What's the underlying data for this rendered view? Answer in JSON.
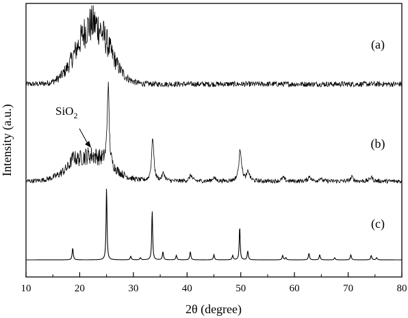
{
  "chart_data": {
    "type": "line",
    "title": "",
    "xlabel": "2θ (degree)",
    "ylabel": "Intensity (a.u.)",
    "xlim": [
      10,
      80
    ],
    "x_ticks": [
      10,
      20,
      30,
      40,
      50,
      60,
      70,
      80
    ],
    "y_ticks_shown": false,
    "grid": false,
    "legend": "none",
    "line_color": "#000000",
    "annotations": [
      {
        "text_main": "SiO",
        "text_sub": "2",
        "points_to_x": 22
      }
    ],
    "series": [
      {
        "label": "(a)",
        "baseline": 0,
        "noise": 0.045,
        "peaks": [
          {
            "x": 22.5,
            "height": 1.0,
            "width": 3.0,
            "shape": "gauss"
          }
        ]
      },
      {
        "label": "(b)",
        "baseline": 0,
        "noise": 0.035,
        "peaks": [
          {
            "x": 22,
            "height": 0.42,
            "width": 3.6,
            "shape": "gauss"
          },
          {
            "x": 18.8,
            "height": 0.12,
            "width": 0.5,
            "shape": "lorentz"
          },
          {
            "x": 25.3,
            "height": 1.32,
            "width": 0.22,
            "shape": "lorentz"
          },
          {
            "x": 33.6,
            "height": 0.72,
            "width": 0.25,
            "shape": "lorentz"
          },
          {
            "x": 35.6,
            "height": 0.13,
            "width": 0.3,
            "shape": "lorentz"
          },
          {
            "x": 40.7,
            "height": 0.1,
            "width": 0.3,
            "shape": "lorentz"
          },
          {
            "x": 45.0,
            "height": 0.06,
            "width": 0.3,
            "shape": "lorentz"
          },
          {
            "x": 49.9,
            "height": 0.52,
            "width": 0.3,
            "shape": "lorentz"
          },
          {
            "x": 51.4,
            "height": 0.15,
            "width": 0.3,
            "shape": "lorentz"
          },
          {
            "x": 57.9,
            "height": 0.06,
            "width": 0.3,
            "shape": "lorentz"
          },
          {
            "x": 62.8,
            "height": 0.08,
            "width": 0.3,
            "shape": "lorentz"
          },
          {
            "x": 64.8,
            "height": 0.05,
            "width": 0.3,
            "shape": "lorentz"
          },
          {
            "x": 70.7,
            "height": 0.07,
            "width": 0.3,
            "shape": "lorentz"
          },
          {
            "x": 74.3,
            "height": 0.07,
            "width": 0.3,
            "shape": "lorentz"
          }
        ]
      },
      {
        "label": "(c)",
        "baseline": 0,
        "noise": 0,
        "peaks": [
          {
            "x": 18.7,
            "height": 0.16,
            "width": 0.12,
            "shape": "lorentz"
          },
          {
            "x": 25.0,
            "height": 1.0,
            "width": 0.1,
            "shape": "lorentz"
          },
          {
            "x": 29.5,
            "height": 0.05,
            "width": 0.12,
            "shape": "lorentz"
          },
          {
            "x": 31.3,
            "height": 0.03,
            "width": 0.12,
            "shape": "lorentz"
          },
          {
            "x": 33.5,
            "height": 0.68,
            "width": 0.1,
            "shape": "lorentz"
          },
          {
            "x": 35.5,
            "height": 0.11,
            "width": 0.12,
            "shape": "lorentz"
          },
          {
            "x": 38.0,
            "height": 0.06,
            "width": 0.12,
            "shape": "lorentz"
          },
          {
            "x": 40.6,
            "height": 0.11,
            "width": 0.12,
            "shape": "lorentz"
          },
          {
            "x": 45.0,
            "height": 0.07,
            "width": 0.12,
            "shape": "lorentz"
          },
          {
            "x": 48.5,
            "height": 0.06,
            "width": 0.12,
            "shape": "lorentz"
          },
          {
            "x": 49.8,
            "height": 0.46,
            "width": 0.1,
            "shape": "lorentz"
          },
          {
            "x": 51.3,
            "height": 0.12,
            "width": 0.12,
            "shape": "lorentz"
          },
          {
            "x": 57.8,
            "height": 0.06,
            "width": 0.12,
            "shape": "lorentz"
          },
          {
            "x": 58.4,
            "height": 0.03,
            "width": 0.12,
            "shape": "lorentz"
          },
          {
            "x": 62.7,
            "height": 0.09,
            "width": 0.12,
            "shape": "lorentz"
          },
          {
            "x": 64.7,
            "height": 0.07,
            "width": 0.12,
            "shape": "lorentz"
          },
          {
            "x": 67.5,
            "height": 0.03,
            "width": 0.12,
            "shape": "lorentz"
          },
          {
            "x": 70.5,
            "height": 0.07,
            "width": 0.12,
            "shape": "lorentz"
          },
          {
            "x": 74.3,
            "height": 0.06,
            "width": 0.12,
            "shape": "lorentz"
          },
          {
            "x": 75.3,
            "height": 0.03,
            "width": 0.12,
            "shape": "lorentz"
          }
        ]
      }
    ]
  }
}
